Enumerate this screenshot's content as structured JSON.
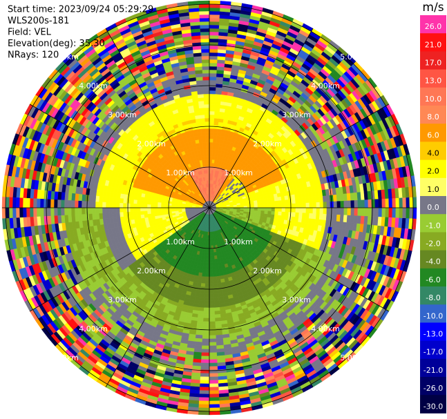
{
  "header": {
    "lines": [
      "Start time: 2023/09/24 05:29:29",
      "WLS200s-181",
      "Field: VEL",
      "Elevation(deg): 35.30",
      "NRays: 120"
    ]
  },
  "range_rings": [
    "1.00km",
    "2.00km",
    "3.00km",
    "4.00km",
    "5.00km"
  ],
  "colorbar": {
    "unit": "m/s",
    "levels": [
      {
        "label": "26.0",
        "color": "#ff33aa"
      },
      {
        "label": "21.0",
        "color": "#ff1111"
      },
      {
        "label": "17.0",
        "color": "#ee2222"
      },
      {
        "label": "13.0",
        "color": "#ff5544"
      },
      {
        "label": "10.0",
        "color": "#ff7755"
      },
      {
        "label": "8.0",
        "color": "#ff8855"
      },
      {
        "label": "6.0",
        "color": "#ff9900"
      },
      {
        "label": "4.0",
        "color": "#ffcc00"
      },
      {
        "label": "2.0",
        "color": "#ffff00"
      },
      {
        "label": "1.0",
        "color": "#ffff66"
      },
      {
        "label": "0.0",
        "color": "#777788"
      },
      {
        "label": "-1.0",
        "color": "#99cc33"
      },
      {
        "label": "-2.0",
        "color": "#88aa22"
      },
      {
        "label": "-4.0",
        "color": "#668822"
      },
      {
        "label": "-6.0",
        "color": "#228822"
      },
      {
        "label": "-8.0",
        "color": "#338866"
      },
      {
        "label": "-10.0",
        "color": "#3366cc"
      },
      {
        "label": "-13.0",
        "color": "#0000ff"
      },
      {
        "label": "-17.0",
        "color": "#0000cc"
      },
      {
        "label": "-21.0",
        "color": "#000099"
      },
      {
        "label": "-26.0",
        "color": "#000066"
      },
      {
        "label": "-30.0",
        "color": "#000044"
      }
    ]
  }
}
